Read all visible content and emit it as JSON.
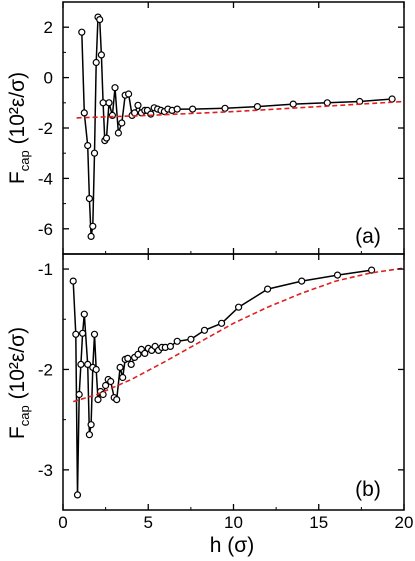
{
  "figure": {
    "xlabel": "h (σ)",
    "colors": {
      "data": "#000000",
      "fit": "#e02020",
      "marker_fill": "#ffffff"
    }
  },
  "chart_data": [
    {
      "type": "line",
      "panel": "(a)",
      "ylabel_main": "F",
      "ylabel_sub": "cap",
      "ylabel_units": " (10²ε/σ)",
      "xlim": [
        0,
        20
      ],
      "ylim": [
        -7,
        3
      ],
      "xticks": [
        0,
        5,
        10,
        15,
        20
      ],
      "yticks": [
        -6,
        -4,
        -2,
        0,
        2
      ],
      "ytick_labels": [
        "-6",
        "-4",
        "-2",
        "0",
        "2"
      ],
      "show_xtick_labels": false,
      "series": [
        {
          "style": "line-marker",
          "x": [
            1.1,
            1.25,
            1.45,
            1.55,
            1.65,
            1.75,
            1.85,
            1.95,
            2.05,
            2.15,
            2.25,
            2.35,
            2.45,
            2.55,
            2.7,
            2.9,
            3.05,
            3.25,
            3.45,
            3.65,
            3.85,
            4.05,
            4.2,
            4.4,
            4.6,
            4.8,
            4.95,
            5.15,
            5.35,
            5.55,
            5.75,
            5.95,
            6.15,
            6.4,
            6.7,
            7.6,
            9.5,
            11.4,
            13.5,
            15.5,
            17.4,
            19.3
          ],
          "y": [
            1.8,
            -1.4,
            -2.7,
            -4.8,
            -6.3,
            -5.9,
            -3.0,
            0.6,
            2.4,
            2.3,
            0.9,
            -1.0,
            -2.5,
            -2.4,
            -1.0,
            -1.5,
            -0.4,
            -2.2,
            -1.8,
            -0.7,
            -0.65,
            -1.5,
            -1.4,
            -1.1,
            -1.4,
            -1.3,
            -1.3,
            -1.45,
            -1.2,
            -1.25,
            -1.3,
            -1.35,
            -1.25,
            -1.3,
            -1.25,
            -1.25,
            -1.22,
            -1.15,
            -1.05,
            -1.0,
            -0.95,
            -0.85
          ]
        },
        {
          "style": "dashed",
          "x": [
            0.8,
            5,
            10,
            15,
            20
          ],
          "y": [
            -1.6,
            -1.5,
            -1.35,
            -1.15,
            -0.95
          ]
        }
      ]
    },
    {
      "type": "line",
      "panel": "(b)",
      "ylabel_main": "F",
      "ylabel_sub": "cap",
      "ylabel_units": " (10²ε/σ)",
      "xlim": [
        0,
        20
      ],
      "ylim": [
        -3.4,
        -0.85
      ],
      "xticks": [
        0,
        5,
        10,
        15,
        20
      ],
      "yticks": [
        -3,
        -2,
        -1
      ],
      "ytick_labels": [
        "-3",
        "-2",
        "-1"
      ],
      "show_xtick_labels": true,
      "series": [
        {
          "style": "line-marker",
          "x": [
            0.6,
            0.75,
            0.85,
            0.95,
            1.05,
            1.15,
            1.25,
            1.45,
            1.55,
            1.65,
            1.75,
            1.85,
            1.95,
            2.05,
            2.2,
            2.35,
            2.5,
            2.65,
            2.8,
            3.0,
            3.15,
            3.35,
            3.5,
            3.65,
            3.8,
            4.0,
            4.2,
            4.4,
            4.6,
            4.8,
            5.0,
            5.2,
            5.4,
            5.6,
            5.8,
            6.0,
            6.3,
            6.7,
            7.5,
            8.3,
            9.3,
            10.3,
            12.0,
            14.0,
            16.1,
            18.1
          ],
          "y": [
            -1.12,
            -1.65,
            -3.25,
            -2.25,
            -1.95,
            -1.64,
            -1.45,
            -1.95,
            -2.65,
            -2.55,
            -1.98,
            -1.65,
            -2.0,
            -2.3,
            -2.22,
            -2.25,
            -2.16,
            -2.1,
            -2.12,
            -2.28,
            -2.3,
            -1.98,
            -2.08,
            -1.9,
            -1.89,
            -1.95,
            -1.88,
            -1.85,
            -1.8,
            -1.84,
            -1.79,
            -1.81,
            -1.77,
            -1.81,
            -1.78,
            -1.78,
            -1.77,
            -1.72,
            -1.7,
            -1.61,
            -1.54,
            -1.38,
            -1.2,
            -1.12,
            -1.06,
            -1.01
          ]
        },
        {
          "style": "dashed",
          "x": [
            0.6,
            2,
            4,
            6,
            8,
            10,
            12,
            14,
            16,
            18,
            20
          ],
          "y": [
            -2.32,
            -2.25,
            -2.1,
            -1.92,
            -1.73,
            -1.54,
            -1.38,
            -1.24,
            -1.12,
            -1.04,
            -0.99
          ]
        }
      ]
    }
  ]
}
